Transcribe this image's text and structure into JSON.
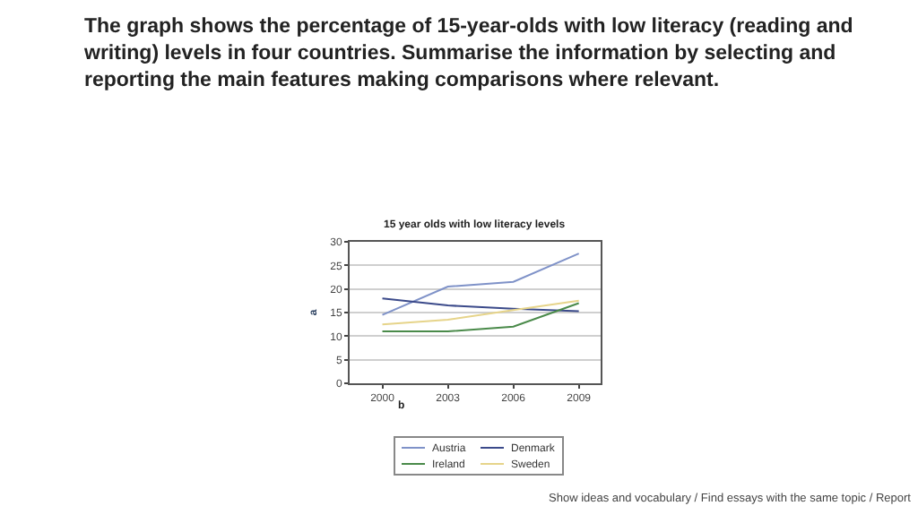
{
  "chart_data": {
    "type": "line",
    "title": "15 year olds with low literacy levels",
    "xlabel": "b",
    "ylabel": "a",
    "x": [
      2000,
      2003,
      2006,
      2009
    ],
    "xlim": [
      1998.5,
      2010
    ],
    "xticks": [
      2000,
      2003,
      2006,
      2009
    ],
    "ylim": [
      0,
      30
    ],
    "yticks": [
      0,
      5,
      10,
      15,
      20,
      25,
      30
    ],
    "grid": "y",
    "legend": "bottom",
    "marker": "none",
    "line_style": "solid",
    "series": [
      {
        "name": "Austria",
        "color": "#7f92c8",
        "values": [
          14.5,
          20.5,
          21.5,
          27.5
        ]
      },
      {
        "name": "Denmark",
        "color": "#3b4a8a",
        "values": [
          18,
          16.5,
          15.8,
          15.3
        ]
      },
      {
        "name": "Ireland",
        "color": "#4a8a4a",
        "values": [
          11,
          11,
          12,
          17
        ]
      },
      {
        "name": "Sweden",
        "color": "#e6d48a",
        "values": [
          12.5,
          13.5,
          15.5,
          17.5
        ]
      }
    ],
    "annotations": [
      "The graph shows the percentage of 15-year-olds with low literacy (reading and writing) levels in four countries. Summarise the information by selecting and reporting the main features making comparisons where relevant.",
      "Show ideas and vocabulary / Find essays with the same topic / Report"
    ]
  }
}
